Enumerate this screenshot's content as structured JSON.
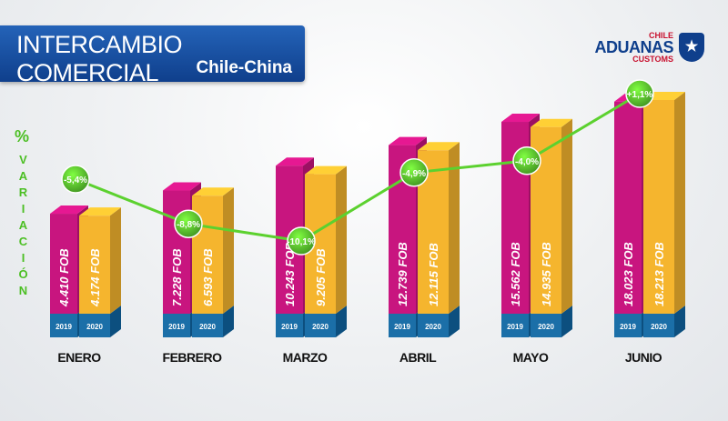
{
  "chart_data": {
    "type": "bar",
    "title": "INTERCAMBIO COMERCIAL",
    "subtitle": "Chile-China",
    "y2_unit": "%",
    "y2_label": "VARIACIÓN",
    "categories": [
      "ENERO",
      "FEBRERO",
      "MARZO",
      "ABRIL",
      "MAYO",
      "JUNIO"
    ],
    "series": [
      {
        "name": "2019",
        "color": "#c8157f",
        "values": [
          4410,
          7228,
          10243,
          12739,
          15562,
          18023
        ],
        "value_labels": [
          "4.410 FOB",
          "7.228 FOB",
          "10.243 FOB",
          "12.739 FOB",
          "15.562 FOB",
          "18.023 FOB"
        ]
      },
      {
        "name": "2020",
        "color": "#f5b52e",
        "values": [
          4174,
          6593,
          9205,
          12115,
          14935,
          18213
        ],
        "value_labels": [
          "4.174 FOB",
          "6.593 FOB",
          "9.205 FOB",
          "12.115 FOB",
          "14.935 FOB",
          "18.213 FOB"
        ]
      }
    ],
    "variation": {
      "color": "#5cd12f",
      "axis": "y2",
      "values": [
        -5.4,
        -8.8,
        -10.1,
        -4.9,
        -4.0,
        1.1
      ],
      "value_labels": [
        "-5,4%",
        "-8,8%",
        "-10,1%",
        "-4,9%",
        "-4,0%",
        "+1,1%"
      ]
    },
    "logo": {
      "top": "CHILE",
      "main": "ADUANAS",
      "bottom": "CUSTOMS"
    }
  }
}
